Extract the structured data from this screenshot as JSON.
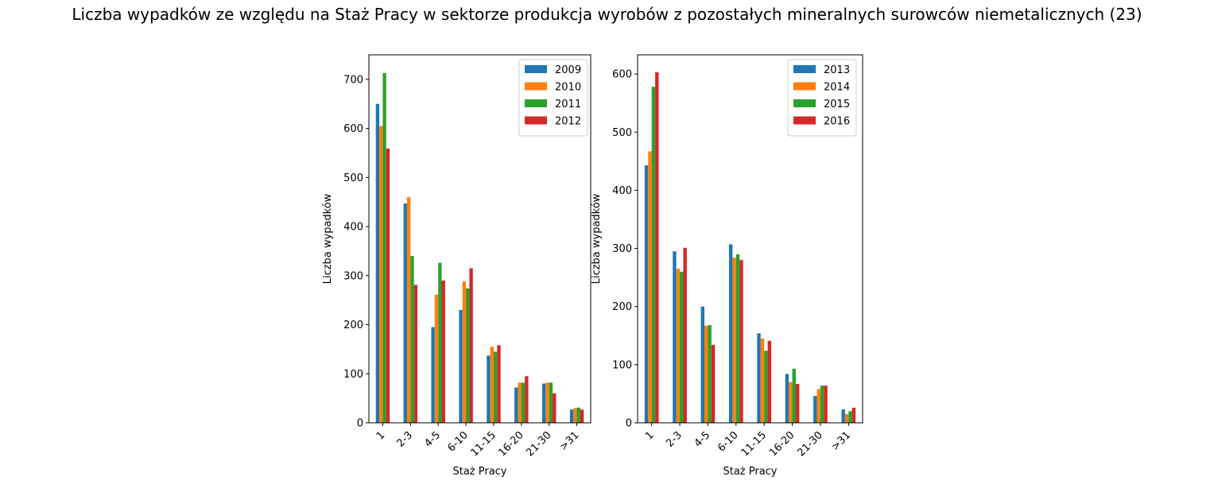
{
  "suptitle": "Liczba wypadków ze względu na Staż Pracy w sektorze produkcja wyrobów z pozostałych mineralnych surowców niemetalicznych (23)",
  "colors": [
    "#1f77b4",
    "#ff7f0e",
    "#2ca02c",
    "#d62728"
  ],
  "chart_data": [
    {
      "type": "bar",
      "title": "",
      "xlabel": "Staż Pracy",
      "ylabel": "Liczba wypadków",
      "categories": [
        "1",
        "2-3",
        "4-5",
        "6-10",
        "11-15",
        "16-20",
        "21-30",
        ">31"
      ],
      "ylim": [
        0,
        750
      ],
      "yticks": [
        0,
        100,
        200,
        300,
        400,
        500,
        600,
        700
      ],
      "legend_position": "upper right",
      "series": [
        {
          "name": "2009",
          "values": [
            650,
            447,
            195,
            230,
            137,
            72,
            80,
            27
          ]
        },
        {
          "name": "2010",
          "values": [
            605,
            460,
            261,
            288,
            155,
            82,
            82,
            30
          ]
        },
        {
          "name": "2011",
          "values": [
            713,
            340,
            326,
            274,
            145,
            82,
            82,
            31
          ]
        },
        {
          "name": "2012",
          "values": [
            559,
            281,
            290,
            315,
            158,
            95,
            60,
            27
          ]
        }
      ]
    },
    {
      "type": "bar",
      "title": "",
      "xlabel": "Staż Pracy",
      "ylabel": "Liczba wypadków",
      "categories": [
        "1",
        "2-3",
        "4-5",
        "6-10",
        "11-15",
        "16-20",
        "21-30",
        ">31"
      ],
      "ylim": [
        0,
        633
      ],
      "yticks": [
        0,
        100,
        200,
        300,
        400,
        500,
        600
      ],
      "legend_position": "upper right",
      "series": [
        {
          "name": "2013",
          "values": [
            443,
            295,
            200,
            307,
            154,
            84,
            46,
            23
          ]
        },
        {
          "name": "2014",
          "values": [
            467,
            265,
            167,
            284,
            145,
            70,
            58,
            15
          ]
        },
        {
          "name": "2015",
          "values": [
            578,
            260,
            168,
            290,
            124,
            93,
            64,
            20
          ]
        },
        {
          "name": "2016",
          "values": [
            603,
            301,
            134,
            280,
            141,
            67,
            64,
            26
          ]
        }
      ]
    }
  ]
}
